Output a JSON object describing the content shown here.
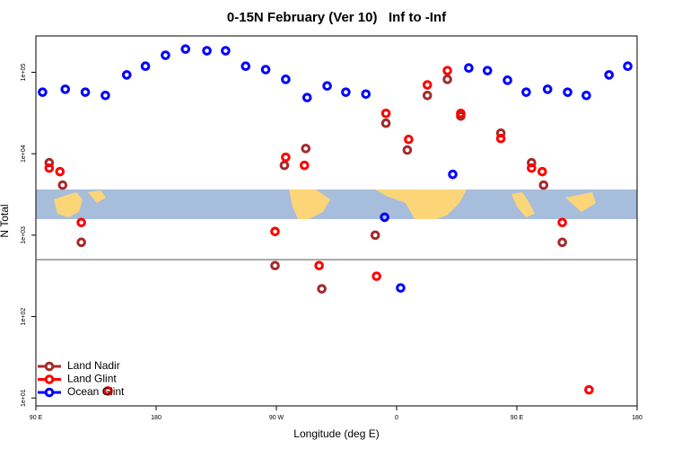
{
  "chart_data": {
    "type": "scatter",
    "title": "0-15N February (Ver 10)   Inf to -Inf",
    "xlabel": "Longitude (deg E)",
    "ylabel": "N Total",
    "xlim": [
      90,
      540
    ],
    "xticks": [
      {
        "value": 90,
        "label": "90 E"
      },
      180,
      {
        "value": 270,
        "label": "90 W"
      },
      {
        "value": 360,
        "label": "0"
      },
      {
        "value": 450,
        "label": "90 E"
      },
      {
        "value": 540,
        "label": "180"
      }
    ],
    "ylim": [
      8,
      280000
    ],
    "ylog": true,
    "yticks": [
      {
        "value": 10,
        "label": "1e+01"
      },
      {
        "value": 100,
        "label": "1e+02"
      },
      {
        "value": 1000,
        "label": "1e+03"
      },
      {
        "value": 10000,
        "label": "1e+04"
      },
      {
        "value": 100000,
        "label": "1e+05"
      }
    ],
    "hline": 500,
    "legend": "lower left",
    "series": [
      {
        "name": "Land Nadir",
        "color": "#a52a2a",
        "x": [
          100,
          110,
          124,
          269,
          276,
          292,
          304,
          344,
          352,
          368,
          383,
          398,
          408,
          438,
          461,
          470,
          484
        ],
        "values": [
          7760,
          4120,
          817,
          423,
          7200,
          11600,
          219,
          1000,
          23700,
          11100,
          52000,
          82000,
          29000,
          17900,
          7760,
          4120,
          817
        ]
      },
      {
        "name": "Land Glint",
        "color": "#ff0000",
        "x": [
          100,
          108,
          124,
          144,
          269,
          277,
          291,
          302,
          345,
          352,
          369,
          383,
          398,
          408,
          438,
          461,
          469,
          484,
          504
        ],
        "values": [
          6670,
          6030,
          1430,
          12.2,
          1110,
          9040,
          7200,
          423,
          313,
          31300,
          15000,
          70100,
          105000,
          31300,
          15400,
          6670,
          6030,
          1430,
          12.6
        ]
      },
      {
        "name": "Ocean Glint",
        "color": "#0000ff",
        "x": [
          95,
          112,
          127,
          142,
          158,
          172,
          187,
          202,
          218,
          232,
          247,
          262,
          277,
          293,
          308,
          322,
          337,
          351,
          363,
          402,
          414,
          428,
          443,
          457,
          473,
          488,
          502,
          519,
          533
        ],
        "values": [
          57000,
          62000,
          57000,
          52000,
          93000,
          119000,
          162000,
          193000,
          184000,
          184000,
          119000,
          108000,
          82000,
          49000,
          68000,
          57000,
          54000,
          1660,
          225,
          5580,
          113000,
          105000,
          80000,
          57000,
          62000,
          57000,
          52000,
          93000,
          119000
        ]
      }
    ]
  }
}
